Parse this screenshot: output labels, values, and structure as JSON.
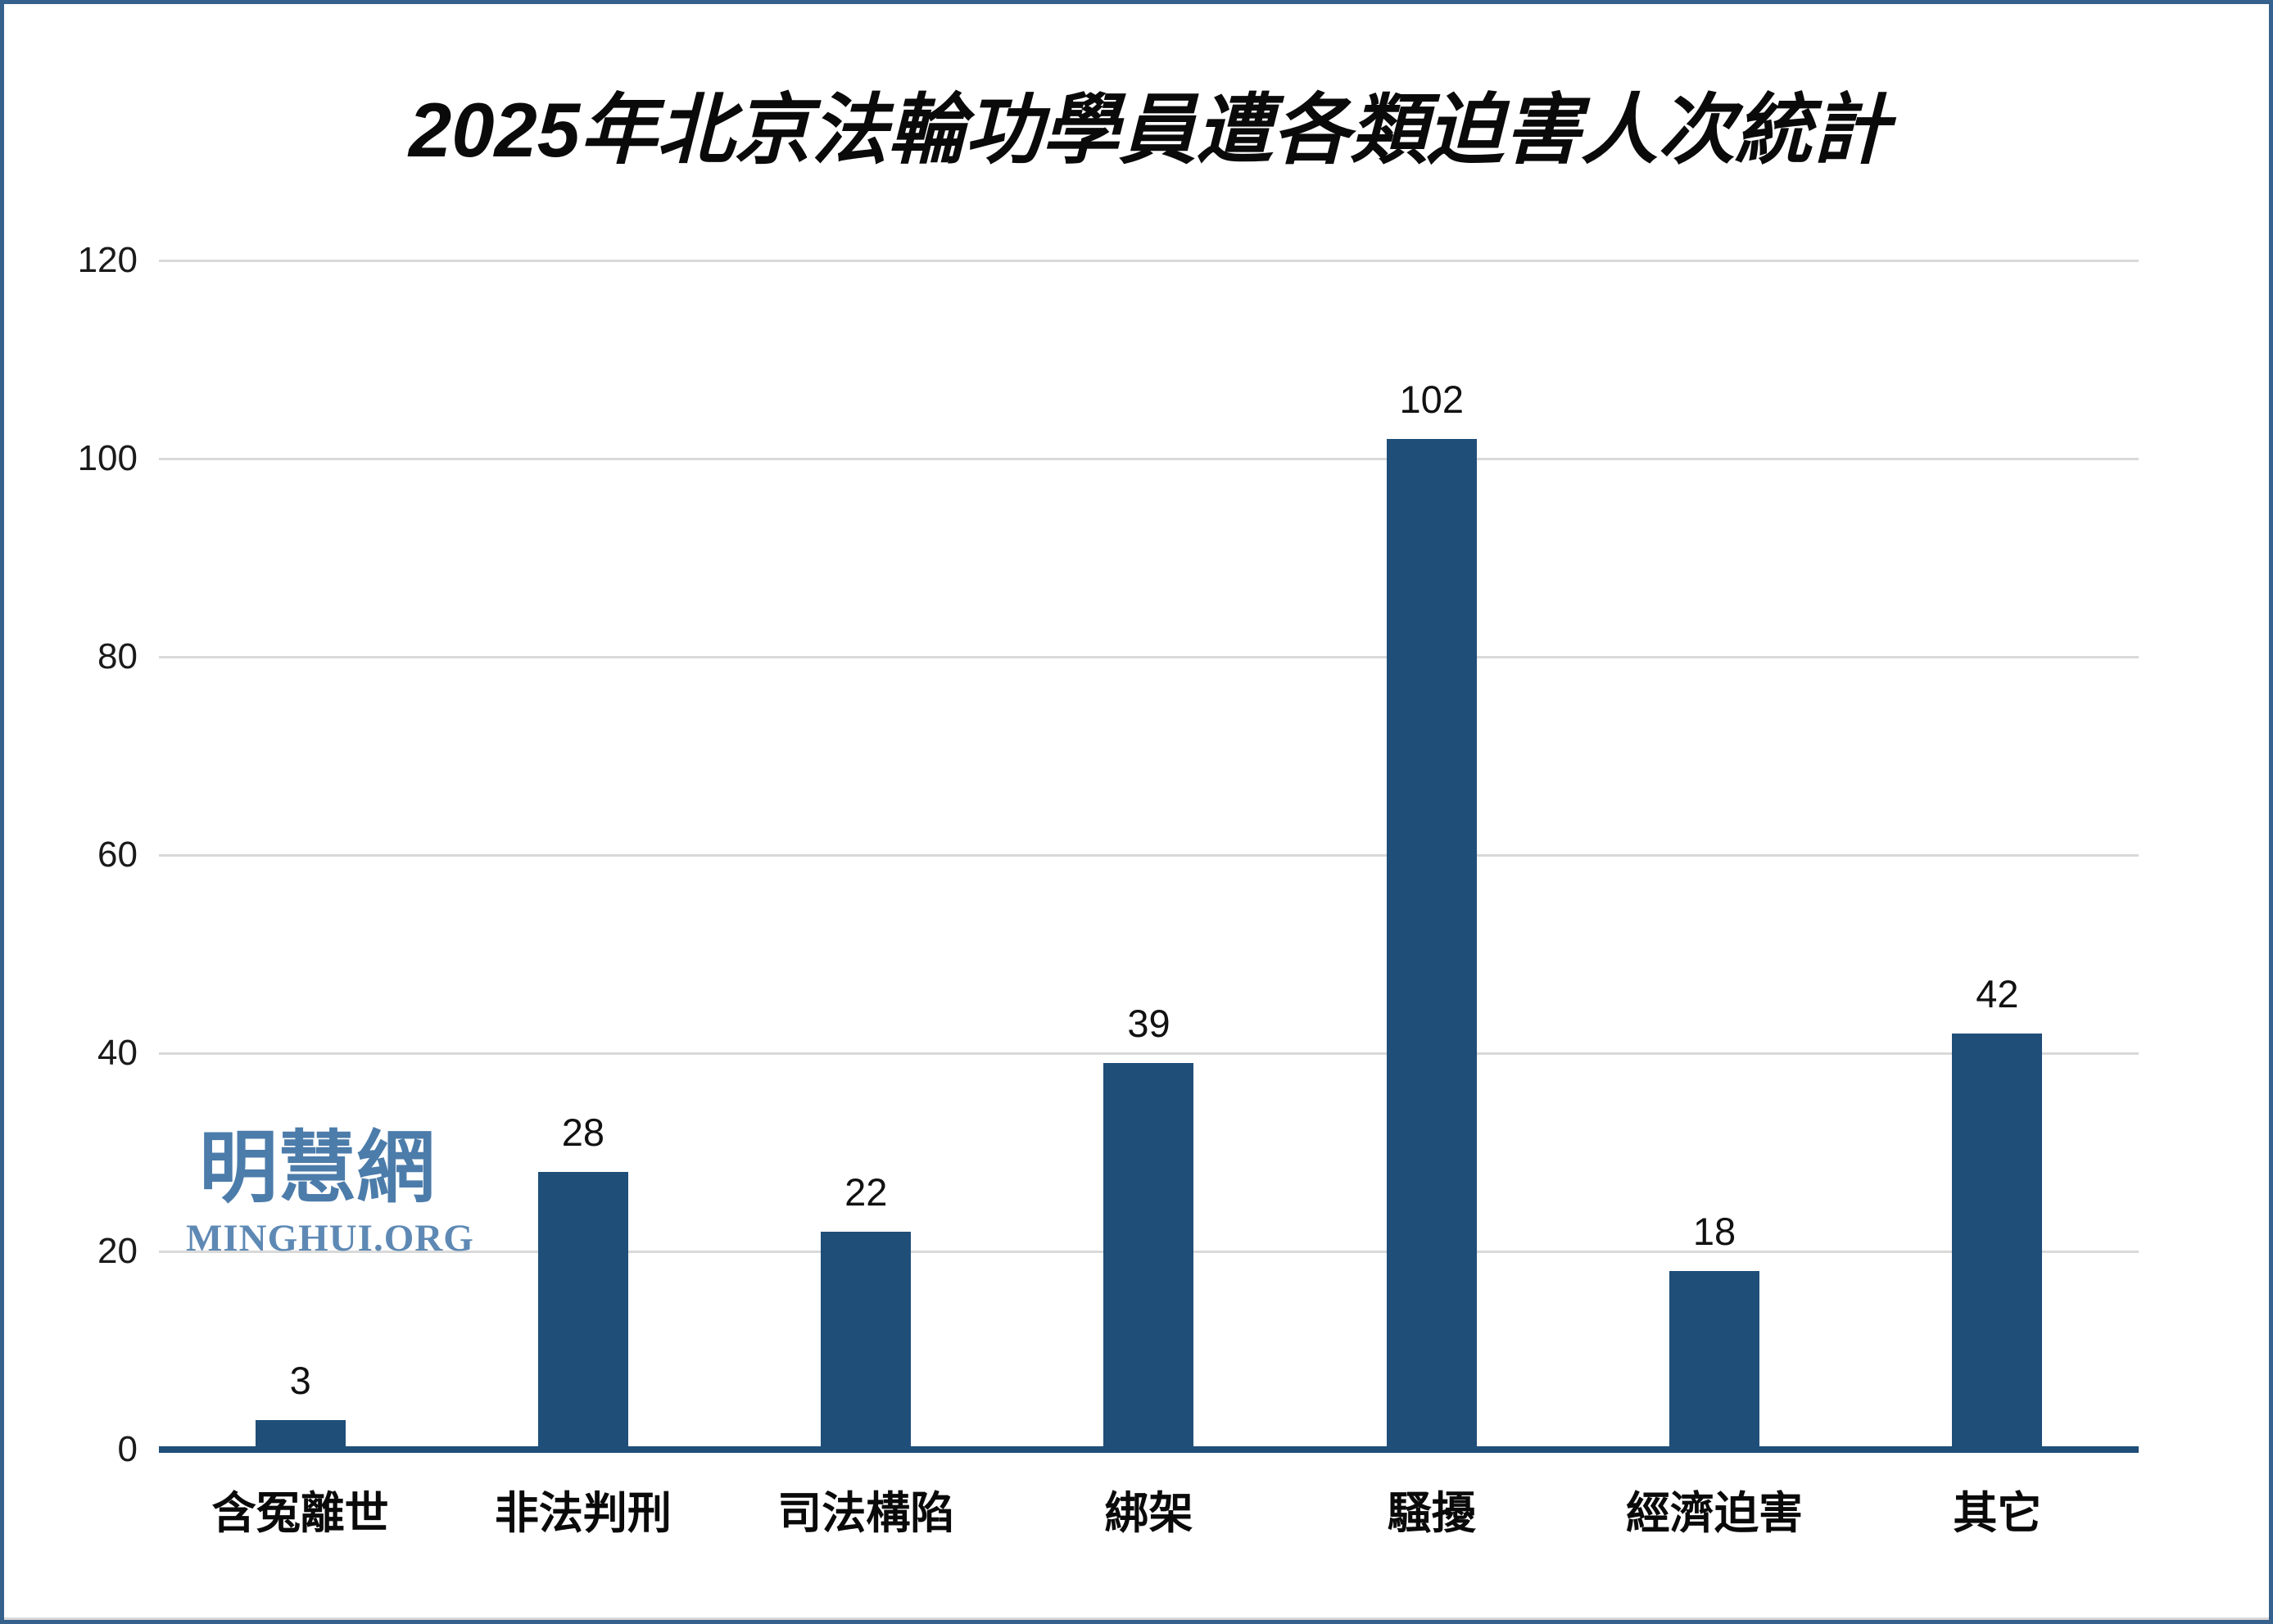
{
  "watermark": {
    "cjk": "明慧網",
    "latin": "MINGHUI.ORG"
  },
  "chart_data": {
    "type": "bar",
    "title": "2025年北京法輪功學員遭各類迫害人次統計",
    "categories": [
      "含冤離世",
      "非法判刑",
      "司法構陷",
      "綁架",
      "騷擾",
      "經濟迫害",
      "其它"
    ],
    "values": [
      3,
      28,
      22,
      39,
      102,
      18,
      42
    ],
    "xlabel": "",
    "ylabel": "",
    "ylim": [
      0,
      120
    ],
    "yticks": [
      0,
      20,
      40,
      60,
      80,
      100,
      120
    ],
    "grid": true,
    "legend": "none",
    "data_labels": true,
    "colors": {
      "bar": "#1F4E79",
      "axis_line": "#1F4E79",
      "gridline": "#D9D9D9",
      "text": "#0a0a0a",
      "frame_border": "#35618C",
      "watermark_cjk": "#4C7CAA",
      "watermark_latin": "#5E89B4"
    }
  }
}
